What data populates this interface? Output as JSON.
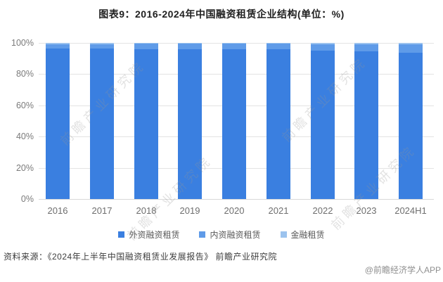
{
  "title": "图表9：2016-2024年中国融资租赁企业结构(单位：%)",
  "source_line": "资料来源：《2024年上半年中国融资租赁业发展报告》 前瞻产业研究院",
  "credit": "@前瞻经济学人APP",
  "watermark_text": "前瞻产业研究院",
  "chart_data": {
    "type": "bar",
    "stacked": true,
    "percent_stacked": true,
    "title": "图表9：2016-2024年中国融资租赁企业结构(单位：%)",
    "unit": "%",
    "categories": [
      "2016",
      "2017",
      "2018",
      "2019",
      "2020",
      "2021",
      "2022",
      "2023",
      "2024H1"
    ],
    "series": [
      {
        "name": "外资融资租赁",
        "color": "#3A7FE0",
        "values": [
          96.4,
          96.5,
          96.0,
          96.1,
          96.1,
          95.8,
          94.9,
          94.4,
          93.5
        ]
      },
      {
        "name": "内资融资租赁",
        "color": "#5F9BE8",
        "values": [
          2.8,
          2.8,
          3.4,
          3.3,
          3.3,
          3.6,
          4.4,
          4.8,
          5.7
        ]
      },
      {
        "name": "金融租赁",
        "color": "#9CC3EE",
        "values": [
          0.8,
          0.7,
          0.6,
          0.6,
          0.6,
          0.6,
          0.7,
          0.8,
          0.8
        ]
      }
    ],
    "ylabel": "",
    "xlabel": "",
    "ylim": [
      0,
      100
    ],
    "yticks": [
      "0%",
      "20%",
      "40%",
      "60%",
      "80%",
      "100%"
    ],
    "grid": true,
    "legend_position": "bottom"
  }
}
